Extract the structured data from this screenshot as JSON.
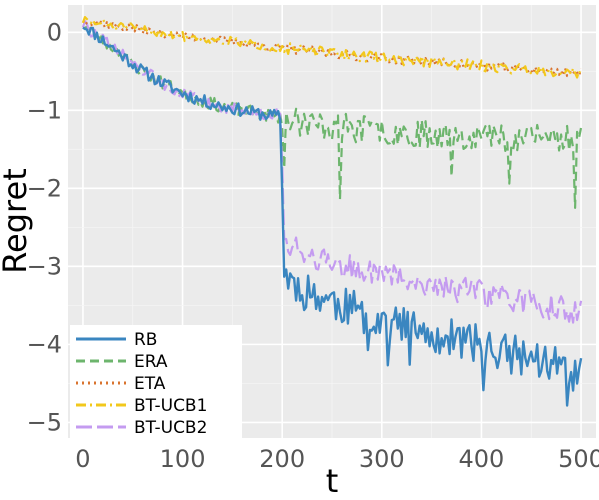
{
  "chart_data": {
    "type": "line",
    "title": "",
    "xlabel": "t",
    "ylabel": "Regret",
    "xlim": [
      -15,
      515
    ],
    "ylim": [
      -5.2,
      0.35
    ],
    "xticks": [
      0,
      100,
      200,
      300,
      400,
      500
    ],
    "xtick_labels": [
      "0",
      "100",
      "200",
      "300",
      "400",
      "500"
    ],
    "yticks": [
      0,
      -1,
      -2,
      -3,
      -4,
      -5
    ],
    "ytick_labels": [
      "0",
      "−1",
      "−2",
      "−3",
      "−4",
      "−5"
    ],
    "grid": true,
    "legend_position": "bottom-left",
    "background": "#ebebeb",
    "series": [
      {
        "name": "RB",
        "color": "#3a86c0",
        "dash": "solid",
        "x": [
          0,
          20,
          40,
          60,
          80,
          100,
          120,
          140,
          160,
          180,
          199,
          201,
          220,
          240,
          260,
          280,
          300,
          320,
          340,
          360,
          380,
          400,
          420,
          440,
          460,
          480,
          500
        ],
        "y": [
          0.1,
          -0.1,
          -0.3,
          -0.5,
          -0.65,
          -0.78,
          -0.88,
          -0.95,
          -1.0,
          -1.05,
          -1.08,
          -3.1,
          -3.3,
          -3.4,
          -3.5,
          -3.6,
          -3.7,
          -3.75,
          -3.85,
          -3.9,
          -3.95,
          -4.0,
          -4.1,
          -4.15,
          -4.2,
          -4.3,
          -4.4
        ]
      },
      {
        "name": "ERA",
        "color": "#6db56d",
        "dash": "dashed",
        "x": [
          0,
          20,
          40,
          60,
          80,
          100,
          120,
          140,
          160,
          180,
          200,
          220,
          240,
          260,
          280,
          300,
          320,
          340,
          360,
          380,
          400,
          420,
          440,
          460,
          480,
          500
        ],
        "y": [
          0.1,
          -0.1,
          -0.3,
          -0.5,
          -0.65,
          -0.78,
          -0.88,
          -0.95,
          -1.0,
          -1.05,
          -1.1,
          -1.15,
          -1.2,
          -1.22,
          -1.24,
          -1.26,
          -1.28,
          -1.3,
          -1.3,
          -1.32,
          -1.32,
          -1.34,
          -1.34,
          -1.35,
          -1.35,
          -1.36
        ]
      },
      {
        "name": "ETA",
        "color": "#d9732e",
        "dash": "dotted",
        "x": [
          0,
          50,
          100,
          150,
          200,
          250,
          300,
          350,
          400,
          450,
          500
        ],
        "y": [
          0.15,
          0.05,
          -0.05,
          -0.12,
          -0.2,
          -0.27,
          -0.33,
          -0.38,
          -0.43,
          -0.48,
          -0.52
        ]
      },
      {
        "name": "BT-UCB1",
        "color": "#f2c81c",
        "dash": "dashdot",
        "x": [
          0,
          50,
          100,
          150,
          200,
          250,
          300,
          350,
          400,
          450,
          500
        ],
        "y": [
          0.15,
          0.05,
          -0.05,
          -0.12,
          -0.2,
          -0.27,
          -0.33,
          -0.38,
          -0.43,
          -0.48,
          -0.52
        ]
      },
      {
        "name": "BT-UCB2",
        "color": "#c49bf0",
        "dash": "longdash",
        "x": [
          0,
          20,
          40,
          60,
          80,
          100,
          120,
          140,
          160,
          180,
          199,
          201,
          220,
          240,
          260,
          280,
          300,
          320,
          340,
          360,
          380,
          400,
          420,
          440,
          460,
          480,
          500
        ],
        "y": [
          0.1,
          -0.1,
          -0.3,
          -0.5,
          -0.65,
          -0.78,
          -0.88,
          -0.95,
          -1.0,
          -1.05,
          -1.05,
          -2.65,
          -2.8,
          -2.9,
          -3.0,
          -3.05,
          -3.1,
          -3.15,
          -3.2,
          -3.25,
          -3.3,
          -3.35,
          -3.4,
          -3.45,
          -3.5,
          -3.55,
          -3.6
        ]
      }
    ]
  }
}
